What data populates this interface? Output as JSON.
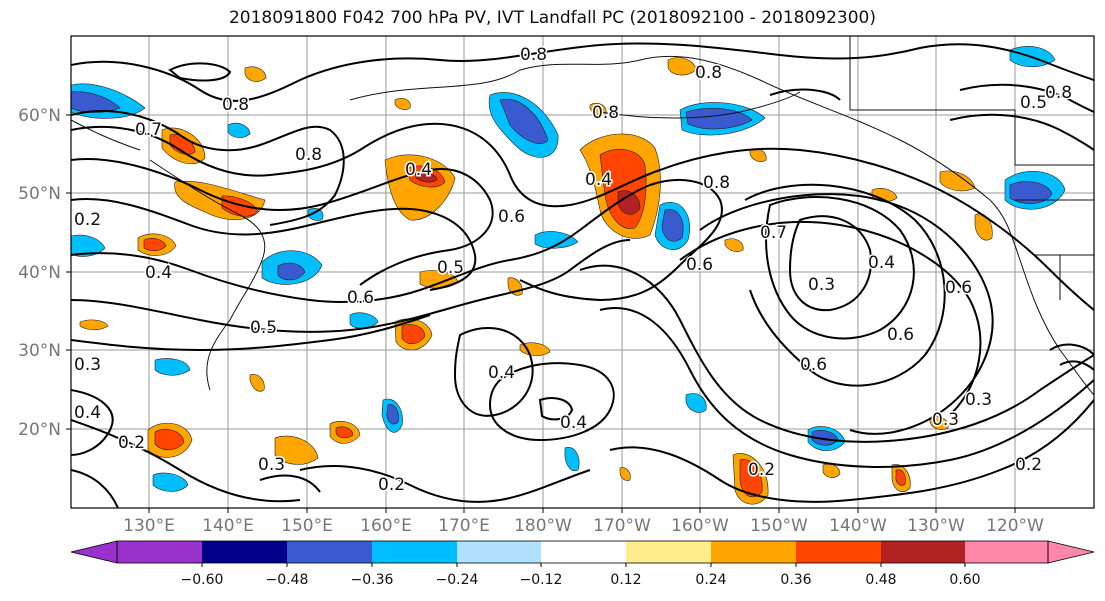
{
  "title": "2018091800 F042 700 hPa PV, IVT Landfall PC (2018092100 - 2018092300)",
  "map": {
    "lat_labels": [
      "60°N",
      "50°N",
      "40°N",
      "30°N",
      "20°N"
    ],
    "lon_labels": [
      "130°E",
      "140°E",
      "150°E",
      "160°E",
      "170°E",
      "180°W",
      "170°W",
      "160°W",
      "150°W",
      "140°W",
      "130°W",
      "120°W"
    ],
    "contour_labels": [
      "0.8",
      "0.8",
      "0.7",
      "0.8",
      "0.8",
      "0.8",
      "0.4",
      "0.6",
      "0.5",
      "0.6",
      "0.5",
      "0.4",
      "0.8",
      "0.7",
      "0.6",
      "0.4",
      "0.3",
      "0.4",
      "0.6",
      "0.6",
      "0.6",
      "0.3",
      "0.4",
      "0.4",
      "0.3",
      "0.2",
      "0.2",
      "0.2",
      "0.3",
      "0.2",
      "0.4",
      "0.3",
      "0.2",
      "0.5",
      "0.8"
    ]
  },
  "colorbar": {
    "colors": [
      "#9932cc",
      "#00008b",
      "#3a5bcf",
      "#00bfff",
      "#b0e2ff",
      "#ffffff",
      "#ffec8b",
      "#ffa500",
      "#ff4500",
      "#b22222",
      "#ff88aa"
    ],
    "tick_labels": [
      "−0.60",
      "−0.48",
      "−0.36",
      "−0.24",
      "−0.12",
      "0.12",
      "0.24",
      "0.36",
      "0.48",
      "0.60"
    ]
  }
}
